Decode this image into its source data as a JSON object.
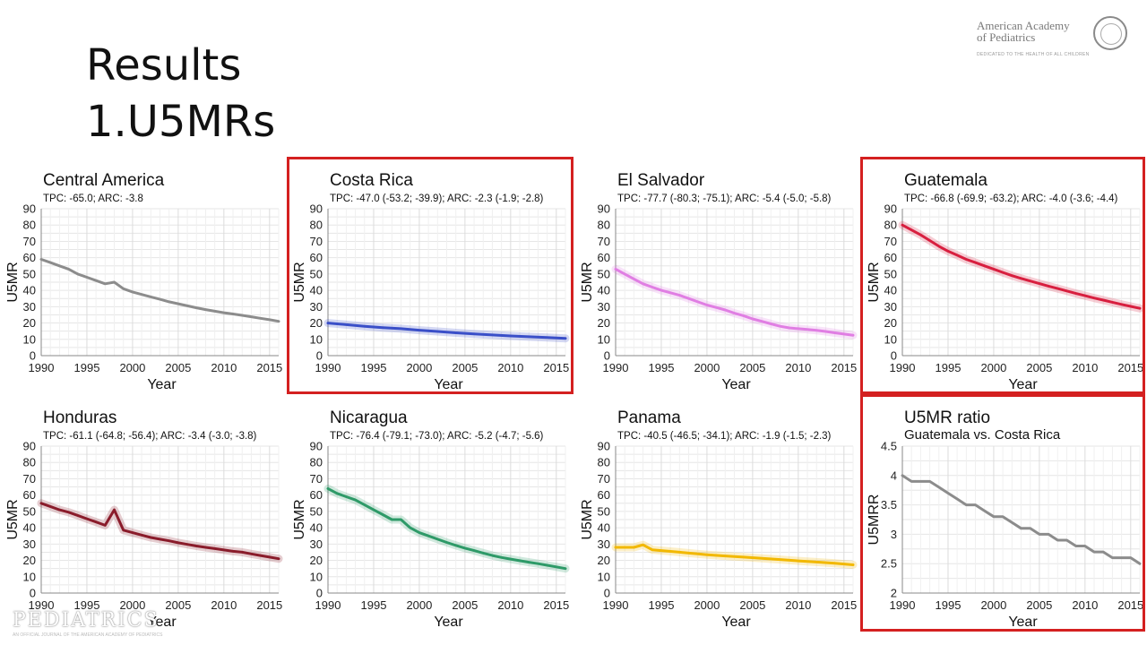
{
  "slide": {
    "title_line1": "Results",
    "title_line2": "1.U5MRs",
    "logo_text_line1": "American Academy",
    "logo_text_line2": "of Pediatrics",
    "logo_tagline": "DEDICATED TO THE HEALTH OF ALL CHILDREN",
    "watermark": "PEDIATRICS",
    "watermark_sub": "AN OFFICIAL JOURNAL OF THE AMERICAN ACADEMY OF PEDIATRICS",
    "highlight_color": "#d42020"
  },
  "chart_data": [
    {
      "type": "line",
      "title": "Central America",
      "subtitle": "TPC: -65.0; ARC: -3.8",
      "xlabel": "Year",
      "ylabel": "U5MR",
      "xlim": [
        1990,
        2016
      ],
      "ylim": [
        0,
        90
      ],
      "xticks": [
        1990,
        1995,
        2000,
        2005,
        2010,
        2015
      ],
      "yticks": [
        0,
        10,
        20,
        30,
        40,
        50,
        60,
        70,
        80,
        90
      ],
      "yticklabels": [
        "0",
        "10",
        "20",
        "30",
        "40",
        "50",
        "60",
        "70",
        "80",
        "90"
      ],
      "grid": true,
      "color": "#8c8c8c",
      "band": false,
      "highlighted": false,
      "series": [
        {
          "x": [
            1990,
            1991,
            1992,
            1993,
            1994,
            1995,
            1996,
            1997,
            1998,
            1999,
            2000,
            2001,
            2002,
            2003,
            2004,
            2005,
            2006,
            2007,
            2008,
            2009,
            2010,
            2011,
            2012,
            2013,
            2014,
            2015,
            2016
          ],
          "y": [
            59,
            57,
            55,
            53,
            50,
            48,
            46,
            44,
            45,
            41,
            39,
            37.5,
            36,
            34.5,
            33,
            31.8,
            30.5,
            29.3,
            28.2,
            27.2,
            26.3,
            25.5,
            24.7,
            23.8,
            22.9,
            22,
            21
          ]
        }
      ]
    },
    {
      "type": "line",
      "title": "Costa Rica",
      "subtitle": "TPC: -47.0 (-53.2; -39.9); ARC: -2.3 (-1.9; -2.8)",
      "xlabel": "Year",
      "ylabel": "U5MR",
      "xlim": [
        1990,
        2016
      ],
      "ylim": [
        0,
        90
      ],
      "xticks": [
        1990,
        1995,
        2000,
        2005,
        2010,
        2015
      ],
      "yticks": [
        0,
        10,
        20,
        30,
        40,
        50,
        60,
        70,
        80,
        90
      ],
      "yticklabels": [
        "0",
        "10",
        "20",
        "30",
        "40",
        "50",
        "60",
        "70",
        "80",
        "90"
      ],
      "grid": true,
      "color": "#3a4fc8",
      "band": true,
      "highlighted": true,
      "series": [
        {
          "x": [
            1990,
            1992,
            1994,
            1996,
            1998,
            2000,
            2002,
            2004,
            2006,
            2008,
            2010,
            2012,
            2014,
            2016
          ],
          "y": [
            20,
            19,
            18,
            17.2,
            16.5,
            15.6,
            14.8,
            14,
            13.3,
            12.7,
            12.1,
            11.6,
            11.1,
            10.6
          ]
        }
      ]
    },
    {
      "type": "line",
      "title": "El Salvador",
      "subtitle": "TPC: -77.7 (-80.3; -75.1); ARC: -5.4 (-5.0; -5.8)",
      "xlabel": "Year",
      "ylabel": "U5MR",
      "xlim": [
        1990,
        2016
      ],
      "ylim": [
        0,
        90
      ],
      "xticks": [
        1990,
        1995,
        2000,
        2005,
        2010,
        2015
      ],
      "yticks": [
        0,
        10,
        20,
        30,
        40,
        50,
        60,
        70,
        80,
        90
      ],
      "yticklabels": [
        "0",
        "10",
        "20",
        "30",
        "40",
        "50",
        "60",
        "70",
        "80",
        "90"
      ],
      "grid": true,
      "color": "#e07ee3",
      "band": true,
      "highlighted": false,
      "series": [
        {
          "x": [
            1990,
            1991,
            1992,
            1993,
            1994,
            1995,
            1996,
            1997,
            1998,
            1999,
            2000,
            2001,
            2002,
            2003,
            2004,
            2005,
            2006,
            2007,
            2008,
            2009,
            2010,
            2011,
            2012,
            2013,
            2014,
            2015,
            2016
          ],
          "y": [
            53,
            50,
            47,
            44,
            42,
            40,
            38.5,
            37,
            35,
            33,
            31,
            29.5,
            28,
            26,
            24.5,
            22.5,
            21,
            19.5,
            18,
            17,
            16.5,
            16,
            15.5,
            14.8,
            14,
            13.2,
            12.5
          ]
        }
      ]
    },
    {
      "type": "line",
      "title": "Guatemala",
      "subtitle": "TPC: -66.8 (-69.9; -63.2); ARC: -4.0 (-3.6; -4.4)",
      "xlabel": "Year",
      "ylabel": "U5MR",
      "xlim": [
        1990,
        2016
      ],
      "ylim": [
        0,
        90
      ],
      "xticks": [
        1990,
        1995,
        2000,
        2005,
        2010,
        2015
      ],
      "yticks": [
        0,
        10,
        20,
        30,
        40,
        50,
        60,
        70,
        80,
        90
      ],
      "yticklabels": [
        "0",
        "10",
        "20",
        "30",
        "40",
        "50",
        "60",
        "70",
        "80",
        "90"
      ],
      "grid": true,
      "color": "#d81f3f",
      "band": true,
      "highlighted": true,
      "series": [
        {
          "x": [
            1990,
            1991,
            1992,
            1993,
            1994,
            1995,
            1996,
            1997,
            1998,
            1999,
            2000,
            2001,
            2002,
            2003,
            2004,
            2005,
            2006,
            2007,
            2008,
            2009,
            2010,
            2011,
            2012,
            2013,
            2014,
            2015,
            2016
          ],
          "y": [
            80,
            77,
            74,
            70.5,
            67,
            64,
            61.5,
            59,
            57,
            55,
            53,
            51,
            49,
            47.3,
            45.7,
            44.1,
            42.6,
            41.1,
            39.6,
            38.1,
            36.7,
            35.3,
            34,
            32.7,
            31.4,
            30.2,
            29
          ]
        }
      ]
    },
    {
      "type": "line",
      "title": "Honduras",
      "subtitle": "TPC: -61.1 (-64.8; -56.4); ARC: -3.4 (-3.0; -3.8)",
      "xlabel": "Year",
      "ylabel": "U5MR",
      "xlim": [
        1990,
        2016
      ],
      "ylim": [
        0,
        90
      ],
      "xticks": [
        1990,
        1995,
        2000,
        2005,
        2010,
        2015
      ],
      "yticks": [
        0,
        10,
        20,
        30,
        40,
        50,
        60,
        70,
        80,
        90
      ],
      "yticklabels": [
        "0",
        "10",
        "20",
        "30",
        "40",
        "50",
        "60",
        "70",
        "80",
        "90"
      ],
      "grid": true,
      "color": "#8a1c2b",
      "band": true,
      "highlighted": false,
      "series": [
        {
          "x": [
            1990,
            1991,
            1992,
            1993,
            1994,
            1995,
            1996,
            1997,
            1998,
            1999,
            2000,
            2001,
            2002,
            2003,
            2004,
            2005,
            2006,
            2007,
            2008,
            2009,
            2010,
            2011,
            2012,
            2013,
            2014,
            2015,
            2016
          ],
          "y": [
            55,
            53,
            51,
            49.5,
            47.5,
            45.5,
            43.5,
            41.5,
            51,
            38.5,
            37,
            35.5,
            34,
            33,
            32,
            30.8,
            29.8,
            28.8,
            28,
            27.2,
            26.4,
            25.6,
            25,
            24,
            23,
            22,
            21
          ]
        }
      ]
    },
    {
      "type": "line",
      "title": "Nicaragua",
      "subtitle": "TPC: -76.4 (-79.1; -73.0); ARC: -5.2 (-4.7; -5.6)",
      "xlabel": "Year",
      "ylabel": "U5MR",
      "xlim": [
        1990,
        2016
      ],
      "ylim": [
        0,
        90
      ],
      "xticks": [
        1990,
        1995,
        2000,
        2005,
        2010,
        2015
      ],
      "yticks": [
        0,
        10,
        20,
        30,
        40,
        50,
        60,
        70,
        80,
        90
      ],
      "yticklabels": [
        "0",
        "10",
        "20",
        "30",
        "40",
        "50",
        "60",
        "70",
        "80",
        "90"
      ],
      "grid": true,
      "color": "#2e9a68",
      "band": true,
      "highlighted": false,
      "series": [
        {
          "x": [
            1990,
            1991,
            1992,
            1993,
            1994,
            1995,
            1996,
            1997,
            1998,
            1999,
            2000,
            2001,
            2002,
            2003,
            2004,
            2005,
            2006,
            2007,
            2008,
            2009,
            2010,
            2011,
            2012,
            2013,
            2014,
            2015,
            2016
          ],
          "y": [
            64,
            61,
            59,
            57,
            54,
            51,
            48,
            45,
            45,
            40,
            37,
            35,
            33,
            31,
            29.2,
            27.5,
            26,
            24.5,
            23,
            21.8,
            20.8,
            19.8,
            18.9,
            18,
            17,
            16,
            15
          ]
        }
      ]
    },
    {
      "type": "line",
      "title": "Panama",
      "subtitle": "TPC: -40.5 (-46.5; -34.1); ARC: -1.9 (-1.5; -2.3)",
      "xlabel": "Year",
      "ylabel": "U5MR",
      "xlim": [
        1990,
        2016
      ],
      "ylim": [
        0,
        90
      ],
      "xticks": [
        1990,
        1995,
        2000,
        2005,
        2010,
        2015
      ],
      "yticks": [
        0,
        10,
        20,
        30,
        40,
        50,
        60,
        70,
        80,
        90
      ],
      "yticklabels": [
        "0",
        "10",
        "20",
        "30",
        "40",
        "50",
        "60",
        "70",
        "80",
        "90"
      ],
      "grid": true,
      "color": "#f2b800",
      "band": true,
      "highlighted": false,
      "series": [
        {
          "x": [
            1990,
            1991,
            1992,
            1993,
            1994,
            1995,
            1996,
            1997,
            1998,
            1999,
            2000,
            2002,
            2004,
            2006,
            2008,
            2010,
            2012,
            2014,
            2016
          ],
          "y": [
            28,
            28,
            28,
            29.5,
            26.5,
            26,
            25.5,
            25,
            24.5,
            24,
            23.5,
            22.7,
            22,
            21.3,
            20.5,
            19.7,
            19,
            18.2,
            17.3
          ]
        }
      ]
    },
    {
      "type": "line",
      "title": "U5MR ratio",
      "subtitle": "Guatemala vs. Costa Rica",
      "xlabel": "Year",
      "ylabel": "U5MRR",
      "xlim": [
        1990,
        2016
      ],
      "ylim": [
        2,
        4.5
      ],
      "xticks": [
        1990,
        1995,
        2000,
        2005,
        2010,
        2015
      ],
      "yticks": [
        2,
        2.5,
        3,
        3.5,
        4,
        4.5
      ],
      "yticklabels": [
        "2",
        "2.5",
        "3",
        "3.5",
        "4",
        "4.5"
      ],
      "grid": true,
      "color": "#8c8c8c",
      "band": false,
      "highlighted": true,
      "series": [
        {
          "x": [
            1990,
            1991,
            1992,
            1993,
            1994,
            1995,
            1996,
            1997,
            1998,
            1999,
            2000,
            2001,
            2002,
            2003,
            2004,
            2005,
            2006,
            2007,
            2008,
            2009,
            2010,
            2011,
            2012,
            2013,
            2014,
            2015,
            2016
          ],
          "y": [
            4.0,
            3.9,
            3.9,
            3.9,
            3.8,
            3.7,
            3.6,
            3.5,
            3.5,
            3.4,
            3.3,
            3.3,
            3.2,
            3.1,
            3.1,
            3.0,
            3.0,
            2.9,
            2.9,
            2.8,
            2.8,
            2.7,
            2.7,
            2.6,
            2.6,
            2.6,
            2.5
          ]
        }
      ]
    }
  ]
}
